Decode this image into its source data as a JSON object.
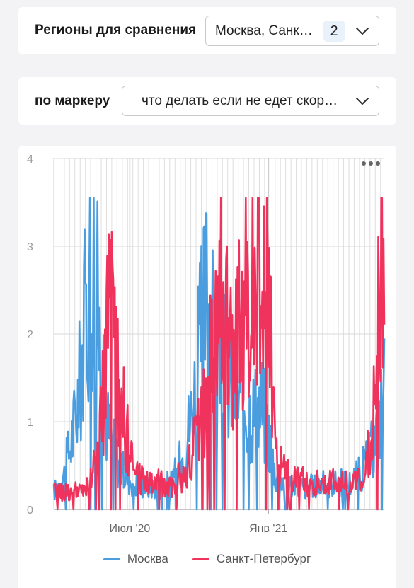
{
  "regions": {
    "label": "Регионы для сравнения",
    "selected_text": "Москва, Санк…",
    "count_badge": "2"
  },
  "marker": {
    "label": "по маркеру",
    "selected_text": "что делать если не едет скор…"
  },
  "menu_icon": "more-dots-icon",
  "colors": {
    "moscow": "#4a9ee0",
    "spb": "#f0335d",
    "grid": "#dedede",
    "axis": "#9a9a9a"
  },
  "chart_data": {
    "type": "line",
    "x_start": "2020-03-22",
    "x_end": "2021-06-04",
    "x_ticks": [
      {
        "date": "2020-07-01",
        "label": "Июл '20"
      },
      {
        "date": "2021-01-01",
        "label": "Янв '21"
      }
    ],
    "y_ticks": [
      0,
      1,
      2,
      3,
      4
    ],
    "ylim": [
      0,
      4
    ],
    "series": [
      {
        "name": "Москва",
        "points": [
          [
            "2020-03-22",
            0.2
          ],
          [
            "2020-03-29",
            0.3
          ],
          [
            "2020-04-05",
            0.4
          ],
          [
            "2020-04-12",
            0.7
          ],
          [
            "2020-04-19",
            1.0
          ],
          [
            "2020-04-26",
            1.5
          ],
          [
            "2020-05-03",
            2.2
          ],
          [
            "2020-05-10",
            2.8
          ],
          [
            "2020-05-14",
            3.0
          ],
          [
            "2020-05-20",
            2.2
          ],
          [
            "2020-05-27",
            1.3
          ],
          [
            "2020-06-03",
            0.9
          ],
          [
            "2020-06-10",
            0.7
          ],
          [
            "2020-06-17",
            0.5
          ],
          [
            "2020-06-24",
            0.4
          ],
          [
            "2020-07-08",
            0.3
          ],
          [
            "2020-07-29",
            0.25
          ],
          [
            "2020-08-26",
            0.3
          ],
          [
            "2020-09-09",
            0.6
          ],
          [
            "2020-09-23",
            1.2
          ],
          [
            "2020-09-30",
            1.7
          ],
          [
            "2020-10-07",
            2.2
          ],
          [
            "2020-10-11",
            2.5
          ],
          [
            "2020-10-18",
            2.0
          ],
          [
            "2020-10-28",
            1.7
          ],
          [
            "2020-11-11",
            1.5
          ],
          [
            "2020-11-25",
            1.3
          ],
          [
            "2020-12-09",
            1.1
          ],
          [
            "2020-12-23",
            1.2
          ],
          [
            "2021-01-03",
            0.8
          ],
          [
            "2021-01-10",
            0.4
          ],
          [
            "2021-01-24",
            0.3
          ],
          [
            "2021-02-21",
            0.25
          ],
          [
            "2021-03-21",
            0.3
          ],
          [
            "2021-04-18",
            0.3
          ],
          [
            "2021-05-02",
            0.4
          ],
          [
            "2021-05-16",
            0.6
          ],
          [
            "2021-05-23",
            0.8
          ],
          [
            "2021-05-30",
            1.1
          ],
          [
            "2021-06-04",
            1.4
          ]
        ]
      },
      {
        "name": "Санкт-Петербург",
        "points": [
          [
            "2020-03-22",
            0.2
          ],
          [
            "2020-04-12",
            0.2
          ],
          [
            "2020-05-03",
            0.2
          ],
          [
            "2020-05-17",
            0.5
          ],
          [
            "2020-05-24",
            1.0
          ],
          [
            "2020-05-31",
            1.8
          ],
          [
            "2020-06-03",
            2.7
          ],
          [
            "2020-06-10",
            1.7
          ],
          [
            "2020-06-17",
            1.5
          ],
          [
            "2020-06-24",
            1.0
          ],
          [
            "2020-07-01",
            0.6
          ],
          [
            "2020-07-08",
            0.4
          ],
          [
            "2020-07-29",
            0.3
          ],
          [
            "2020-08-26",
            0.3
          ],
          [
            "2020-09-16",
            0.4
          ],
          [
            "2020-09-30",
            1.0
          ],
          [
            "2020-10-14",
            1.4
          ],
          [
            "2020-10-25",
            2.5
          ],
          [
            "2020-10-28",
            3.0
          ],
          [
            "2020-11-11",
            1.6
          ],
          [
            "2020-11-25",
            2.2
          ],
          [
            "2020-12-09",
            2.7
          ],
          [
            "2020-12-16",
            3.1
          ],
          [
            "2020-12-23",
            2.4
          ],
          [
            "2021-01-03",
            2.6
          ],
          [
            "2021-01-10",
            0.6
          ],
          [
            "2021-01-24",
            0.4
          ],
          [
            "2021-02-21",
            0.3
          ],
          [
            "2021-03-21",
            0.3
          ],
          [
            "2021-04-18",
            0.3
          ],
          [
            "2021-05-09",
            0.3
          ],
          [
            "2021-05-23",
            1.3
          ],
          [
            "2021-05-30",
            2.8
          ],
          [
            "2021-06-01",
            3.5
          ],
          [
            "2021-06-04",
            1.5
          ]
        ]
      }
    ]
  }
}
